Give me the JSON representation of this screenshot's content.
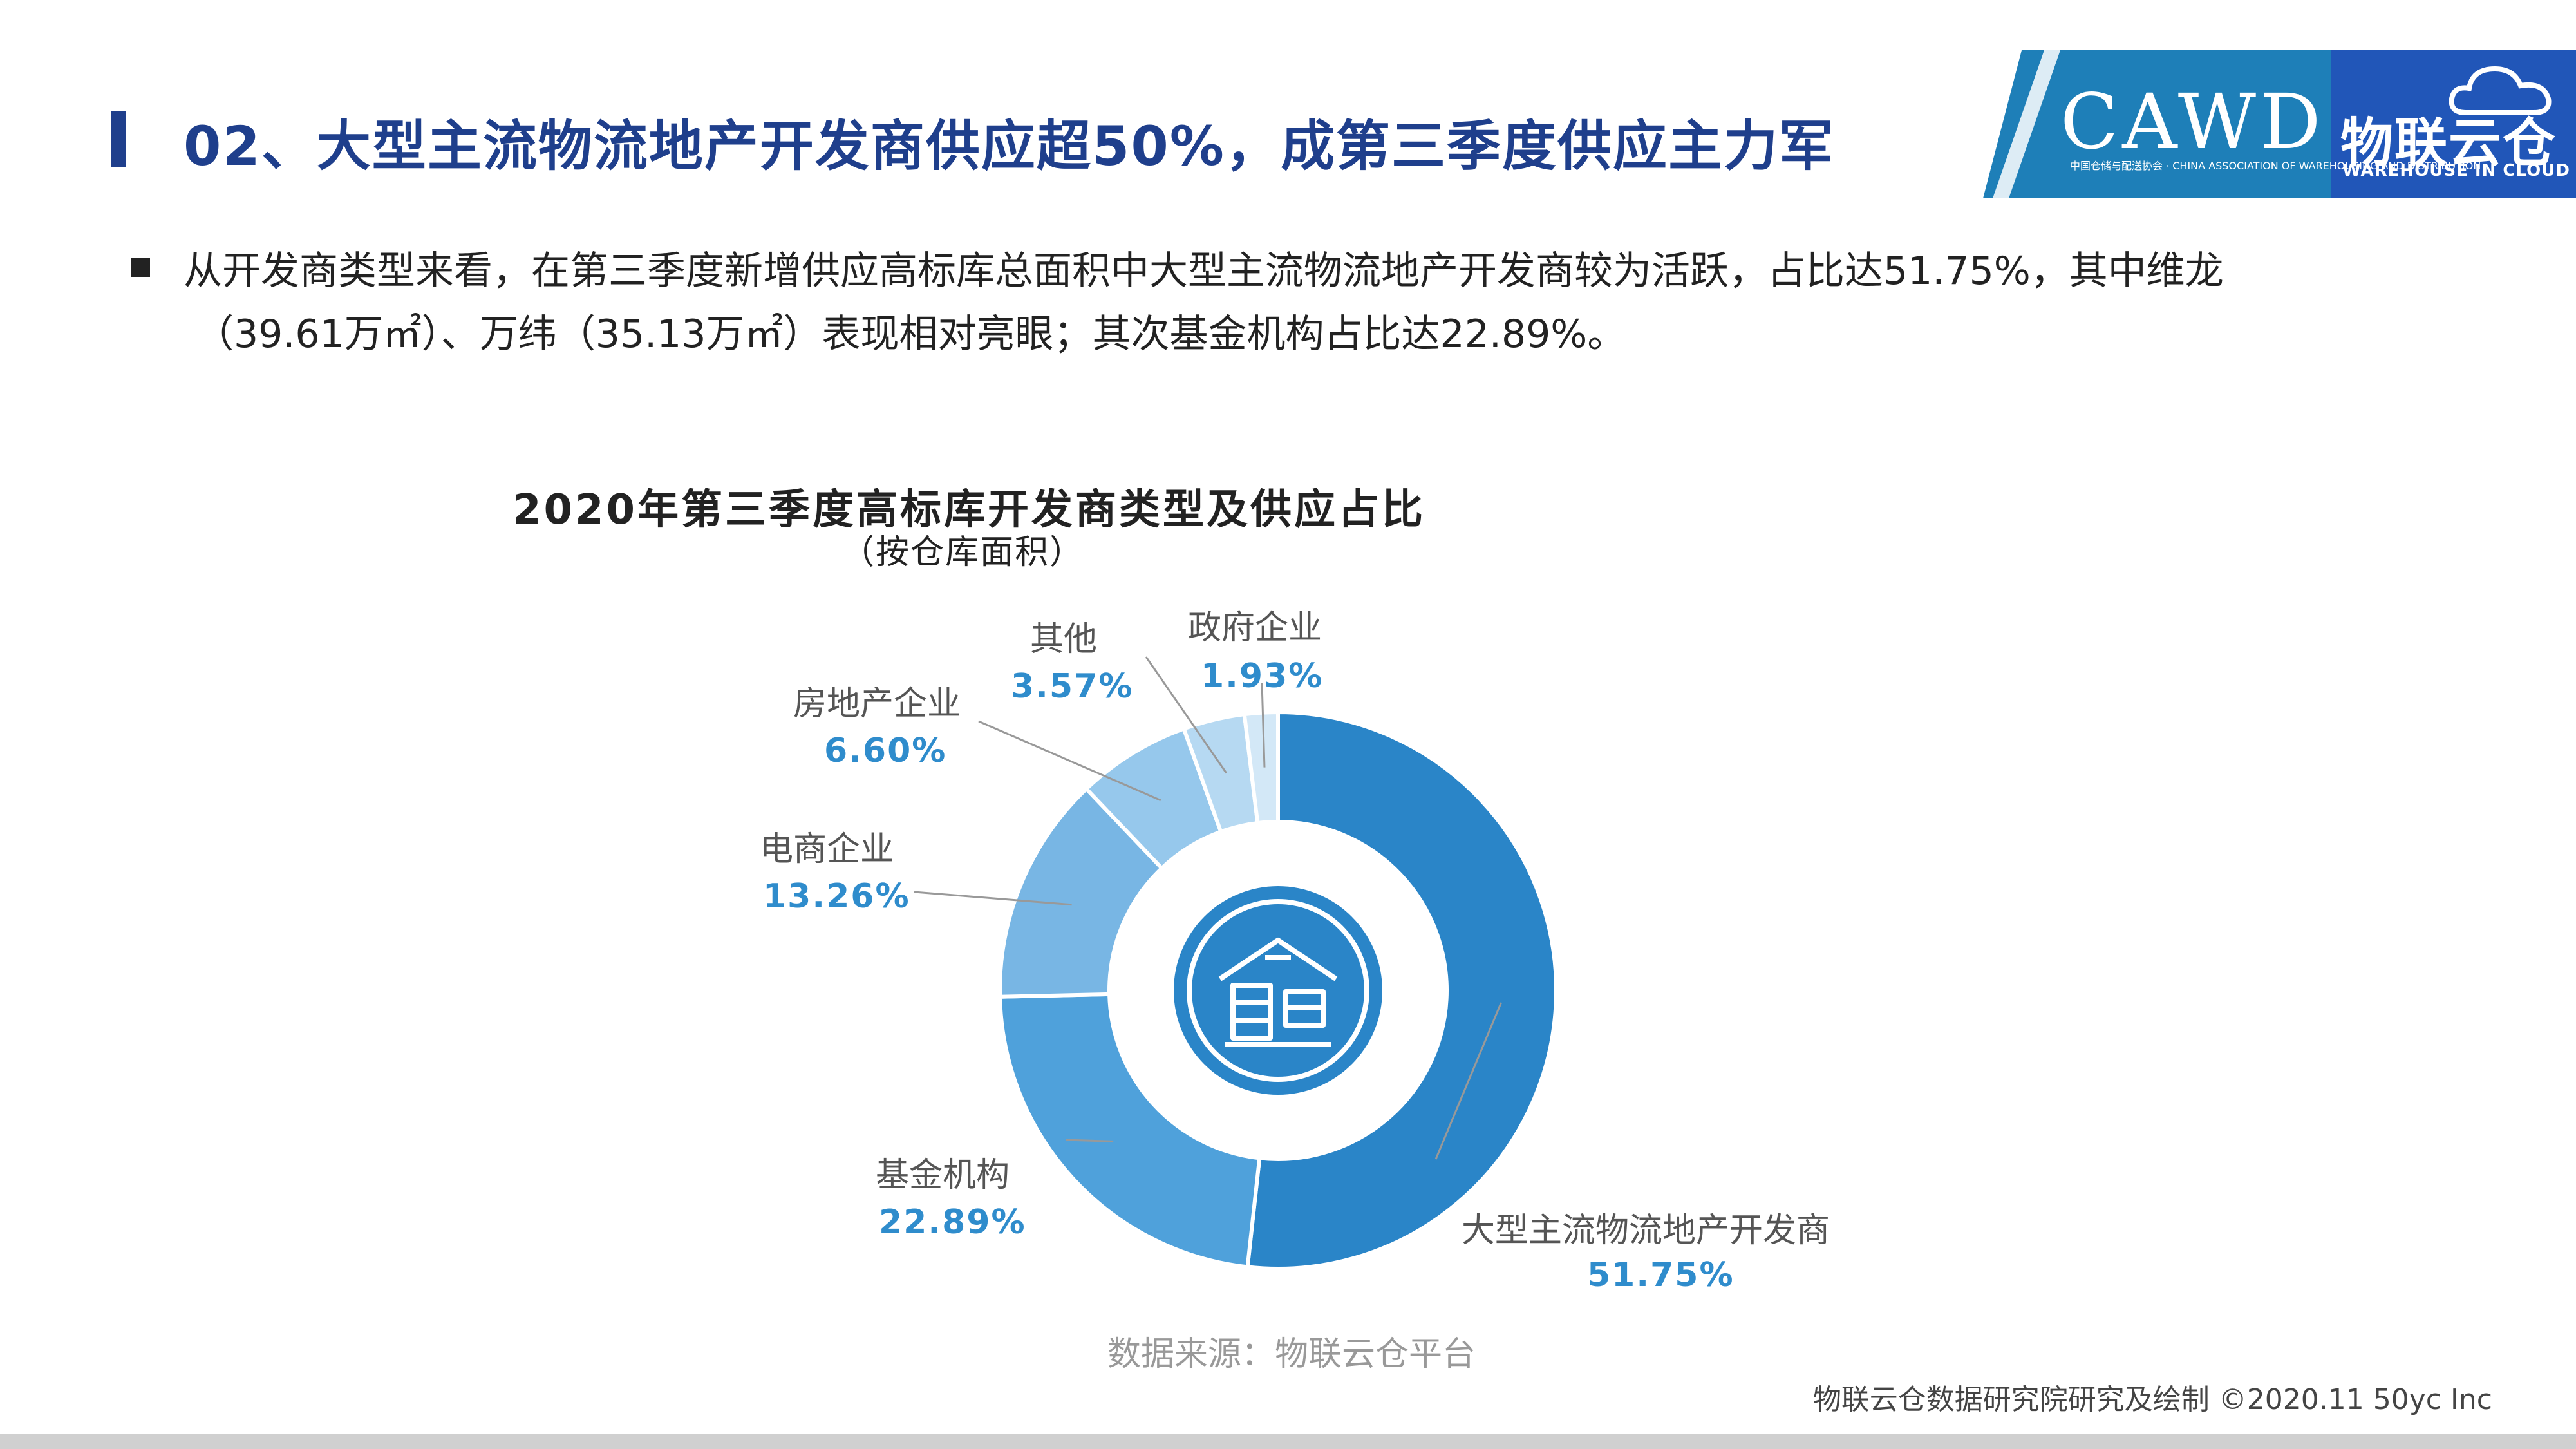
{
  "header": {
    "title": "02、大型主流物流地产开发商供应超50%，成第三季度供应主力军"
  },
  "logo": {
    "cawd": "CAWD",
    "cawd_sub": "中国仓储与配送协会 · CHINA ASSOCIATION OF WAREHOUSING AND DISTRIBUTION",
    "brand_cn": "物联云仓",
    "brand_en": "WAREHOUSE IN CLOUD"
  },
  "bullet": {
    "line1": "从开发商类型来看，在第三季度新增供应高标库总面积中大型主流物流地产开发商较为活跃，占比达51.75%，其中维龙",
    "line2": "（39.61万㎡）、万纬（35.13万㎡）表现相对亮眼；其次基金机构占比达22.89%。"
  },
  "chart_data": {
    "type": "pie",
    "title": "2020年第三季度高标库开发商类型及供应占比",
    "subtitle": "（按仓库面积）",
    "slices": [
      {
        "name": "大型主流物流地产开发商",
        "value": 51.75,
        "label": "51.75%",
        "color": "#2a85c8"
      },
      {
        "name": "基金机构",
        "value": 22.89,
        "label": "22.89%",
        "color": "#4fa1db"
      },
      {
        "name": "电商企业",
        "value": 13.26,
        "label": "13.26%",
        "color": "#78b6e4"
      },
      {
        "name": "房地产企业",
        "value": 6.6,
        "label": "6.60%",
        "color": "#96c8ec"
      },
      {
        "name": "其他",
        "value": 3.57,
        "label": "3.57%",
        "color": "#b6d9f2"
      },
      {
        "name": "政府企业",
        "value": 1.93,
        "label": "1.93%",
        "color": "#d3e8f7"
      }
    ]
  },
  "source": "数据来源：物联云仓平台",
  "footer": "物联云仓数据研究院研究及绘制    ©2020.11 50yc Inc"
}
